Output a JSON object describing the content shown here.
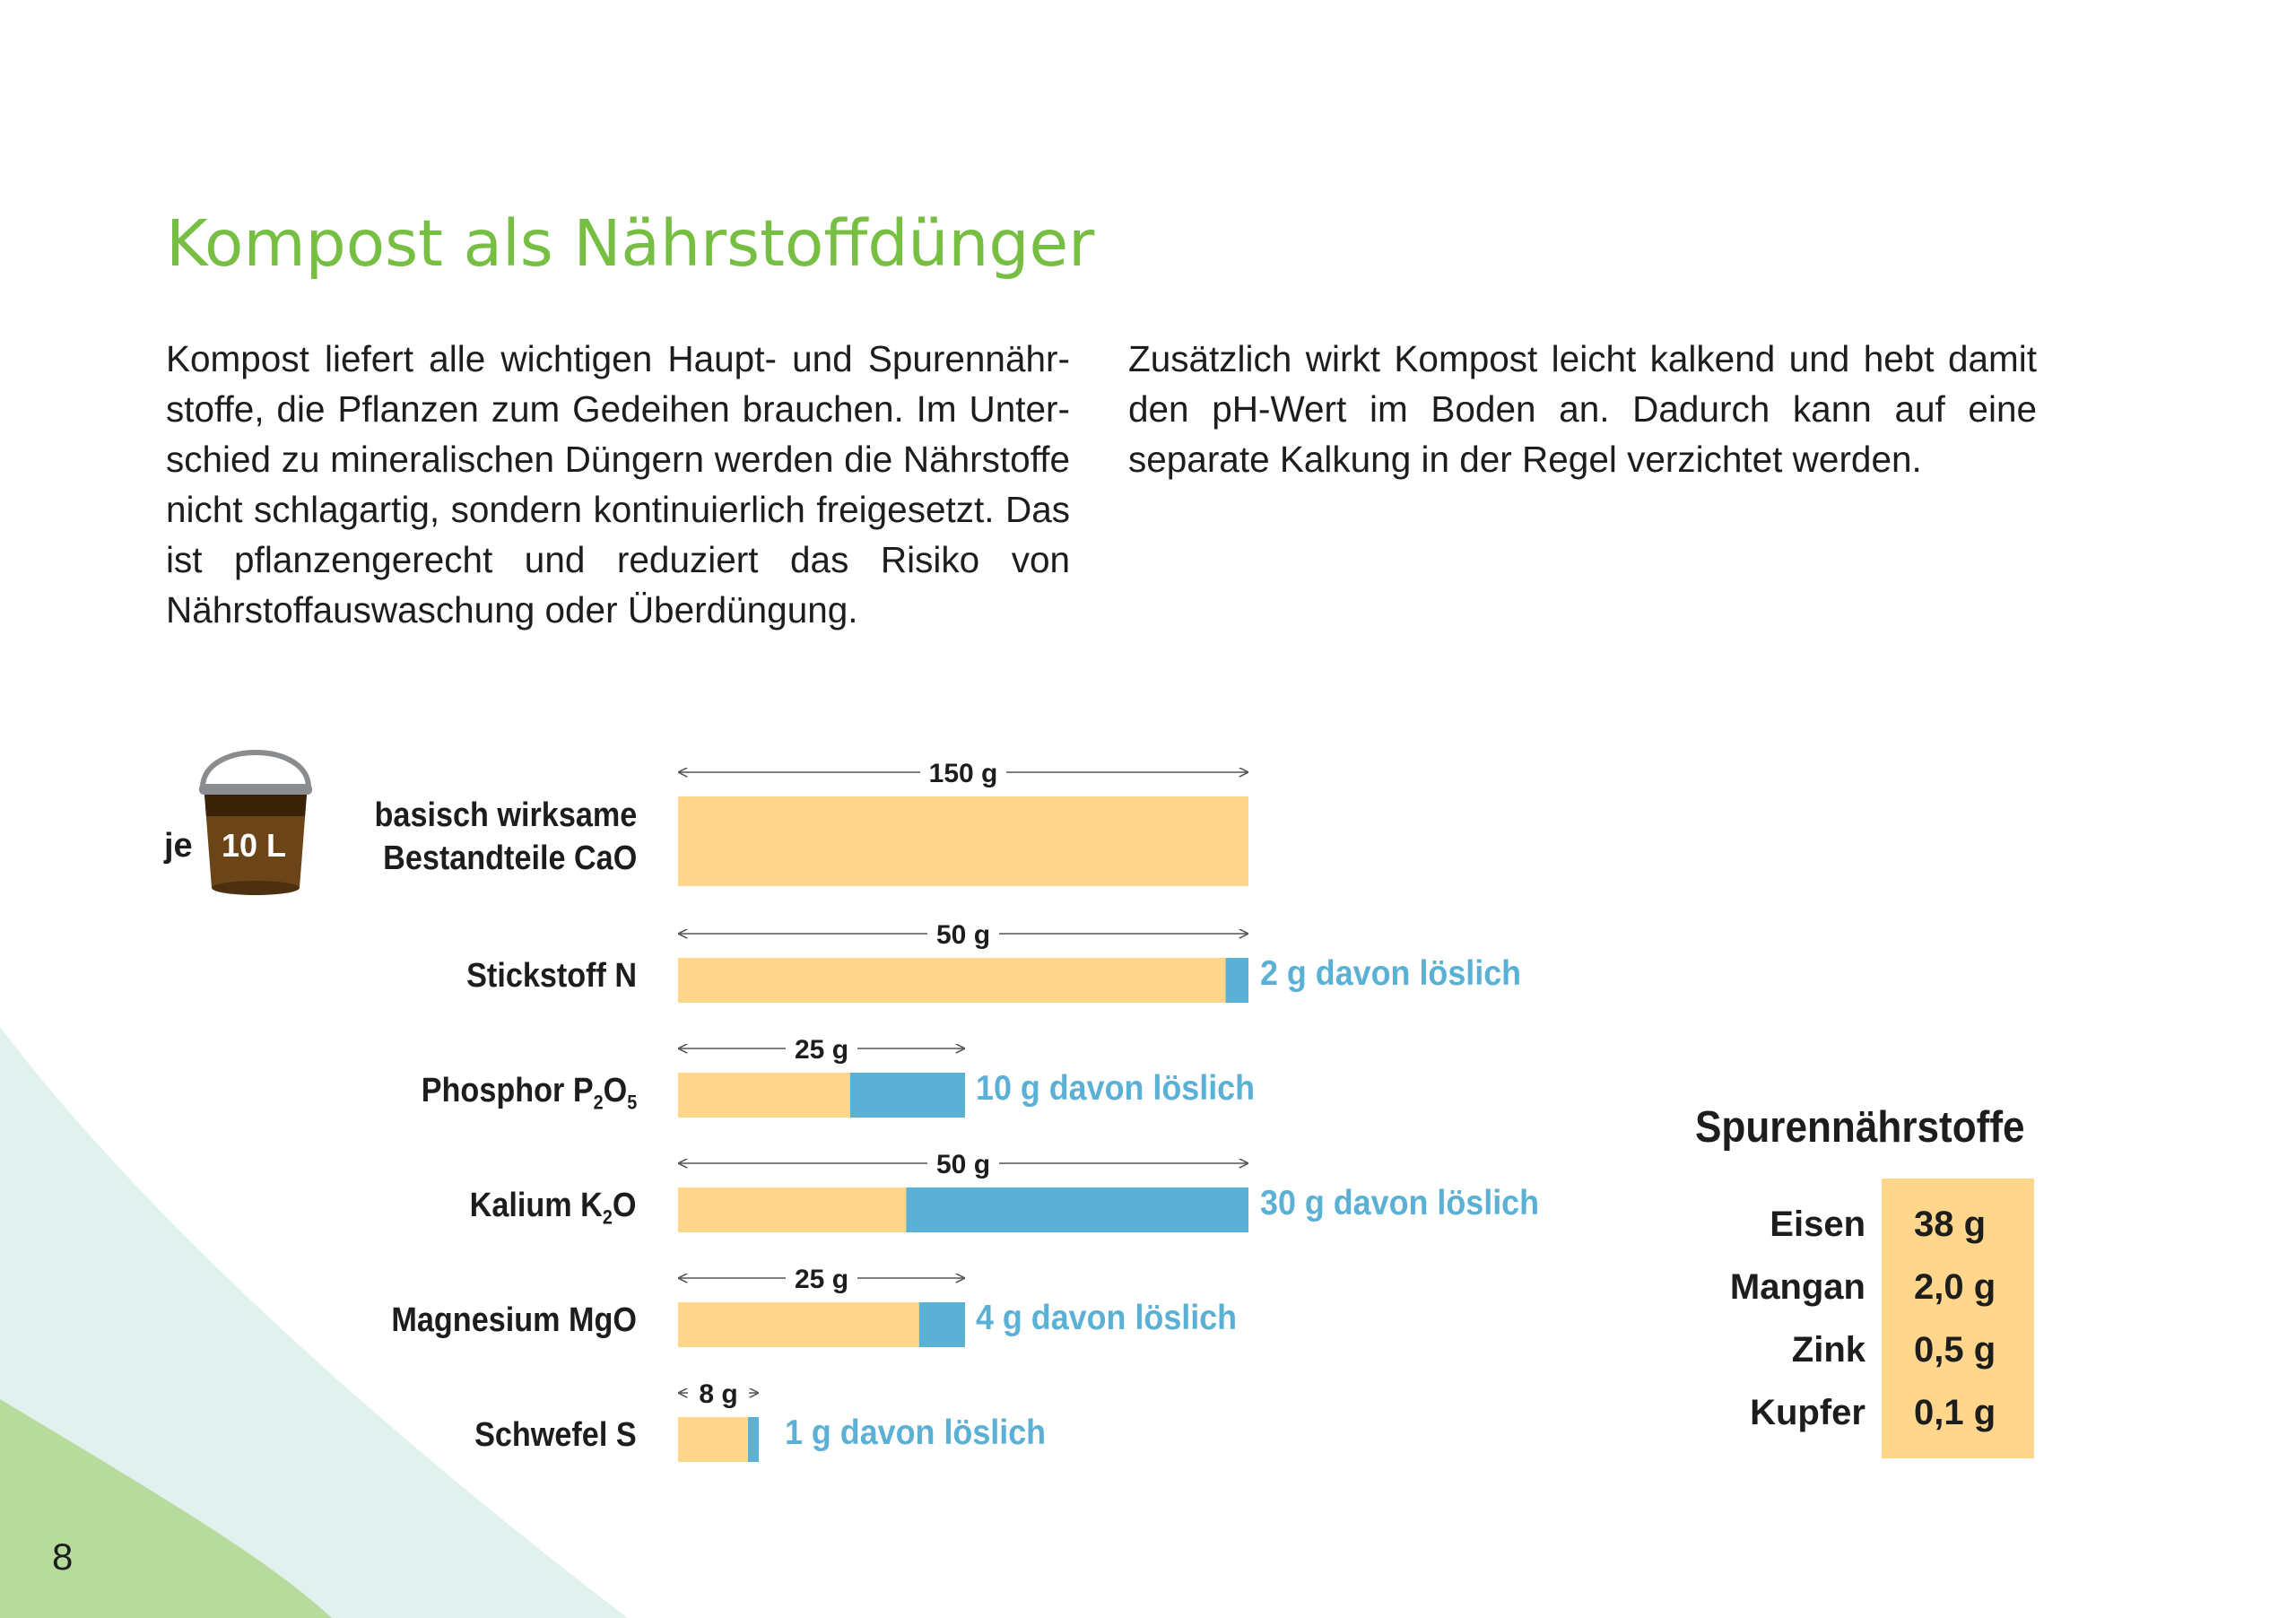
{
  "page": {
    "title": "Kompost als Nährstoffdünger",
    "paragraph_left": "Kompost liefert alle wichtigen Haupt- und Spurennähr­stoffe, die Pflanzen zum Gedeihen brauchen. Im Unter­schied zu mineralischen Düngern werden die Nährstoffe nicht schlagartig, sondern kontinuierlich freigesetzt. Das ist pflanzengerecht und reduziert das Risiko von Nährstoff­auswaschung oder Überdüngung.",
    "paragraph_right": "Zusätzlich wirkt Kompost leicht kalkend und hebt damit den pH-Wert im Boden an. Dadurch kann auf eine separa­te Kalkung in der Regel verzichtet werden.",
    "page_number": "8"
  },
  "bucket": {
    "prefix": "je",
    "label": "10 L",
    "icon": "bucket-icon"
  },
  "colors": {
    "title_green": "#76bf43",
    "total_bar": "#ffd68c",
    "soluble_bar": "#5bb0d5",
    "bg_mint": "#e0f1ee",
    "bg_green": "#b7db9c"
  },
  "chart_data": {
    "type": "bar",
    "orientation": "horizontal",
    "unit": "g",
    "rows": [
      {
        "label": "basisch wirksame Bestandteile CaO",
        "label_lines": [
          "basisch wirksame",
          "Bestandteile CaO"
        ],
        "total": 150,
        "total_label": "150 g",
        "soluble": null,
        "soluble_label": ""
      },
      {
        "label": "Stickstoff N",
        "total": 50,
        "total_label": "50 g",
        "soluble": 2,
        "soluble_label": "2 g davon löslich"
      },
      {
        "label": "Phosphor P2O5",
        "total": 25,
        "total_label": "25 g",
        "soluble": 10,
        "soluble_label": "10 g davon löslich"
      },
      {
        "label": "Kalium K2O",
        "total": 50,
        "total_label": "50 g",
        "soluble": 30,
        "soluble_label": "30 g davon löslich"
      },
      {
        "label": "Magnesium MgO",
        "total": 25,
        "total_label": "25 g",
        "soluble": 4,
        "soluble_label": "4 g davon löslich"
      },
      {
        "label": "Schwefel S",
        "total": 8,
        "total_label": "8 g",
        "soluble": 1,
        "soluble_label": "1 g davon löslich"
      }
    ],
    "row_labels": {
      "stickstoff": "Stickstoff N",
      "phosphor_main": "Phosphor P",
      "phosphor_sub1": "2",
      "phosphor_mid": "O",
      "phosphor_sub2": "5",
      "kalium_main": "Kalium K",
      "kalium_sub": "2",
      "kalium_end": "O",
      "magnesium": "Magnesium MgO",
      "schwefel": "Schwefel S"
    }
  },
  "trace_elements": {
    "title": "Spurennährstoffe",
    "items": [
      {
        "name": "Eisen",
        "value": "38 g"
      },
      {
        "name": "Mangan",
        "value": "2,0 g"
      },
      {
        "name": "Zink",
        "value": "0,5 g"
      },
      {
        "name": "Kupfer",
        "value": "0,1 g"
      }
    ]
  }
}
